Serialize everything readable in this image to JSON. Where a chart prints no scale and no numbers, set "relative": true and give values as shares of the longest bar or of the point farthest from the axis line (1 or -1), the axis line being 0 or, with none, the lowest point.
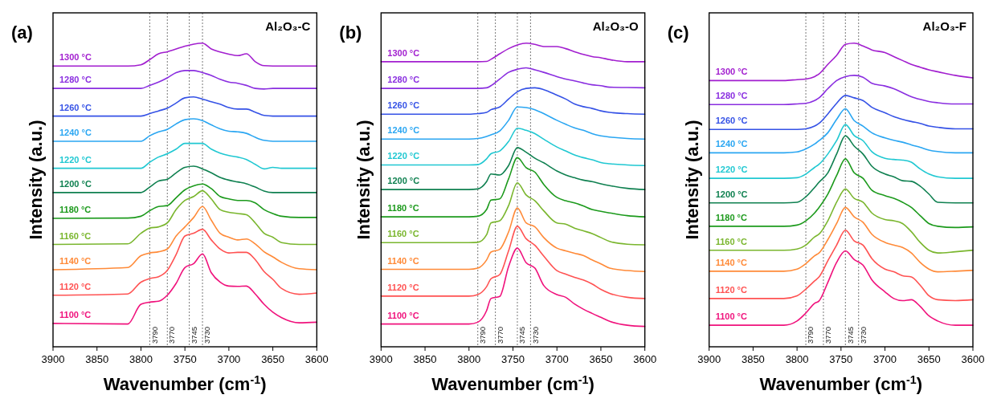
{
  "chart_data": [
    {
      "type": "line",
      "relative": true,
      "title": "(a)",
      "subtitle": "Al₂O₃-C",
      "xlabel": "Wavenumber (cm$^{-1}$)",
      "ylabel": "Intensity (a.u.)",
      "xlim": [
        3900,
        3600
      ],
      "xticks": [
        3900,
        3850,
        3800,
        3750,
        3700,
        3650,
        3600
      ],
      "tick_labels": "x",
      "x": [
        3900,
        3815,
        3800,
        3790,
        3780,
        3770,
        3760,
        3750,
        3740,
        3730,
        3720,
        3710,
        3700,
        3690,
        3680,
        3670,
        3660,
        3650,
        3640,
        3620,
        3600
      ],
      "ref_lines": [
        {
          "axis": "x",
          "value": 3790,
          "label": "3790",
          "color": "#555555",
          "line_style": "dotted"
        },
        {
          "axis": "x",
          "value": 3770,
          "label": "3770",
          "color": "#555555",
          "line_style": "dotted"
        },
        {
          "axis": "x",
          "value": 3745,
          "label": "3745",
          "color": "#555555",
          "line_style": "dotted"
        },
        {
          "axis": "x",
          "value": 3730,
          "label": "3730",
          "color": "#555555",
          "line_style": "dotted"
        }
      ],
      "series": [
        {
          "name": "1300 °C",
          "color": "#a21fcf",
          "values": [
            0.925,
            0.925,
            0.929,
            0.946,
            0.965,
            0.972,
            0.981,
            0.99,
            0.997,
            1.0,
            0.981,
            0.971,
            0.964,
            0.959,
            0.965,
            0.939,
            0.926,
            0.925,
            0.925,
            0.925,
            0.925
          ]
        },
        {
          "name": "1280 °C",
          "color": "#8a2ee0",
          "values": [
            0.851,
            0.851,
            0.851,
            0.861,
            0.872,
            0.886,
            0.903,
            0.91,
            0.91,
            0.903,
            0.894,
            0.881,
            0.872,
            0.868,
            0.861,
            0.851,
            0.849,
            0.851,
            0.851,
            0.851,
            0.851
          ]
        },
        {
          "name": "1260 °C",
          "color": "#3552e6",
          "values": [
            0.76,
            0.76,
            0.76,
            0.768,
            0.777,
            0.786,
            0.803,
            0.82,
            0.823,
            0.816,
            0.807,
            0.799,
            0.788,
            0.783,
            0.783,
            0.773,
            0.762,
            0.76,
            0.76,
            0.76,
            0.76
          ]
        },
        {
          "name": "1240 °C",
          "color": "#2aa6f2",
          "values": [
            0.677,
            0.677,
            0.677,
            0.695,
            0.708,
            0.716,
            0.734,
            0.748,
            0.751,
            0.745,
            0.731,
            0.718,
            0.71,
            0.708,
            0.703,
            0.69,
            0.68,
            0.677,
            0.677,
            0.677,
            0.677
          ]
        },
        {
          "name": "1220 °C",
          "color": "#20c8d2",
          "values": [
            0.588,
            0.588,
            0.588,
            0.608,
            0.625,
            0.636,
            0.651,
            0.67,
            0.67,
            0.67,
            0.651,
            0.638,
            0.63,
            0.625,
            0.617,
            0.601,
            0.586,
            0.591,
            0.588,
            0.588,
            0.588
          ]
        },
        {
          "name": "1200 °C",
          "color": "#0f8050",
          "values": [
            0.508,
            0.508,
            0.508,
            0.526,
            0.546,
            0.552,
            0.573,
            0.591,
            0.595,
            0.586,
            0.573,
            0.558,
            0.549,
            0.543,
            0.537,
            0.526,
            0.513,
            0.508,
            0.508,
            0.508,
            0.508
          ]
        },
        {
          "name": "1180 °C",
          "color": "#1c9a1c",
          "values": [
            0.423,
            0.424,
            0.43,
            0.448,
            0.462,
            0.465,
            0.491,
            0.517,
            0.53,
            0.536,
            0.521,
            0.495,
            0.487,
            0.482,
            0.482,
            0.474,
            0.452,
            0.439,
            0.43,
            0.426,
            0.426
          ]
        },
        {
          "name": "1160 °C",
          "color": "#7ab62e",
          "values": [
            0.337,
            0.339,
            0.374,
            0.391,
            0.395,
            0.408,
            0.452,
            0.482,
            0.495,
            0.514,
            0.487,
            0.452,
            0.443,
            0.439,
            0.435,
            0.408,
            0.374,
            0.361,
            0.343,
            0.337,
            0.337
          ]
        },
        {
          "name": "1140 °C",
          "color": "#ff8a38",
          "values": [
            0.254,
            0.261,
            0.3,
            0.309,
            0.313,
            0.322,
            0.365,
            0.395,
            0.426,
            0.462,
            0.417,
            0.374,
            0.361,
            0.352,
            0.355,
            0.339,
            0.313,
            0.296,
            0.278,
            0.257,
            0.254
          ]
        },
        {
          "name": "1120 °C",
          "color": "#ff5252",
          "values": [
            0.17,
            0.174,
            0.213,
            0.225,
            0.231,
            0.252,
            0.304,
            0.365,
            0.374,
            0.387,
            0.352,
            0.322,
            0.309,
            0.311,
            0.311,
            0.287,
            0.248,
            0.222,
            0.192,
            0.173,
            0.177
          ]
        },
        {
          "name": "1100 °C",
          "color": "#f0127c",
          "values": [
            0.077,
            0.075,
            0.14,
            0.147,
            0.15,
            0.17,
            0.209,
            0.261,
            0.274,
            0.306,
            0.244,
            0.213,
            0.2,
            0.199,
            0.2,
            0.174,
            0.14,
            0.114,
            0.096,
            0.079,
            0.081
          ]
        }
      ]
    },
    {
      "type": "line",
      "relative": true,
      "title": "(b)",
      "subtitle": "Al₂O₃-O",
      "xlabel": "Wavenumber (cm$^{-1}$)",
      "ylabel": "Intensity (a.u.)",
      "xlim": [
        3900,
        3600
      ],
      "xticks": [
        3900,
        3850,
        3800,
        3750,
        3700,
        3650,
        3600
      ],
      "tick_labels": "x",
      "x": [
        3900,
        3815,
        3800,
        3790,
        3780,
        3775,
        3765,
        3755,
        3745,
        3735,
        3725,
        3715,
        3700,
        3690,
        3680,
        3670,
        3660,
        3650,
        3640,
        3620,
        3600
      ],
      "ref_lines": [
        {
          "axis": "x",
          "value": 3790,
          "label": "3790",
          "color": "#555555",
          "line_style": "dotted"
        },
        {
          "axis": "x",
          "value": 3770,
          "label": "3770",
          "color": "#555555",
          "line_style": "dotted"
        },
        {
          "axis": "x",
          "value": 3745,
          "label": "3745",
          "color": "#555555",
          "line_style": "dotted"
        },
        {
          "axis": "x",
          "value": 3730,
          "label": "3730",
          "color": "#555555",
          "line_style": "dotted"
        }
      ],
      "series": [
        {
          "name": "1300 °C",
          "color": "#a21fcf",
          "values": [
            0.939,
            0.939,
            0.939,
            0.939,
            0.94,
            0.947,
            0.965,
            0.982,
            0.994,
            1.0,
            0.996,
            0.989,
            0.989,
            0.982,
            0.972,
            0.963,
            0.956,
            0.952,
            0.946,
            0.939,
            0.939
          ]
        },
        {
          "name": "1280 °C",
          "color": "#8a2ee0",
          "values": [
            0.851,
            0.851,
            0.851,
            0.851,
            0.853,
            0.86,
            0.882,
            0.904,
            0.914,
            0.919,
            0.912,
            0.904,
            0.89,
            0.882,
            0.876,
            0.869,
            0.863,
            0.86,
            0.855,
            0.854,
            0.853
          ]
        },
        {
          "name": "1260 °C",
          "color": "#3552e6",
          "values": [
            0.766,
            0.766,
            0.766,
            0.768,
            0.772,
            0.781,
            0.79,
            0.816,
            0.84,
            0.851,
            0.853,
            0.847,
            0.829,
            0.816,
            0.8,
            0.791,
            0.785,
            0.777,
            0.772,
            0.768,
            0.766
          ]
        },
        {
          "name": "1240 °C",
          "color": "#2aa6f2",
          "values": [
            0.684,
            0.684,
            0.684,
            0.686,
            0.693,
            0.698,
            0.711,
            0.746,
            0.79,
            0.788,
            0.781,
            0.768,
            0.746,
            0.733,
            0.721,
            0.713,
            0.702,
            0.695,
            0.691,
            0.686,
            0.684
          ]
        },
        {
          "name": "1220 °C",
          "color": "#20c8d2",
          "values": [
            0.599,
            0.599,
            0.599,
            0.6,
            0.619,
            0.636,
            0.645,
            0.676,
            0.72,
            0.713,
            0.702,
            0.684,
            0.658,
            0.645,
            0.632,
            0.623,
            0.616,
            0.607,
            0.603,
            0.599,
            0.597
          ]
        },
        {
          "name": "1200 °C",
          "color": "#0f8050",
          "values": [
            0.518,
            0.518,
            0.518,
            0.52,
            0.544,
            0.569,
            0.566,
            0.597,
            0.656,
            0.641,
            0.621,
            0.606,
            0.579,
            0.566,
            0.557,
            0.549,
            0.544,
            0.537,
            0.531,
            0.522,
            0.518
          ]
        },
        {
          "name": "1180 °C",
          "color": "#1c9a1c",
          "values": [
            0.428,
            0.428,
            0.428,
            0.43,
            0.452,
            0.483,
            0.487,
            0.553,
            0.623,
            0.59,
            0.575,
            0.535,
            0.492,
            0.481,
            0.474,
            0.464,
            0.452,
            0.446,
            0.441,
            0.432,
            0.428
          ]
        },
        {
          "name": "1160 °C",
          "color": "#7ab62e",
          "values": [
            0.343,
            0.343,
            0.343,
            0.344,
            0.369,
            0.408,
            0.415,
            0.465,
            0.54,
            0.5,
            0.481,
            0.448,
            0.408,
            0.404,
            0.391,
            0.382,
            0.373,
            0.36,
            0.347,
            0.338,
            0.336
          ]
        },
        {
          "name": "1140 °C",
          "color": "#ff8a38",
          "values": [
            0.255,
            0.255,
            0.255,
            0.259,
            0.286,
            0.312,
            0.321,
            0.378,
            0.457,
            0.408,
            0.395,
            0.36,
            0.325,
            0.316,
            0.308,
            0.301,
            0.286,
            0.273,
            0.259,
            0.251,
            0.248
          ]
        },
        {
          "name": "1120 °C",
          "color": "#ff5252",
          "values": [
            0.167,
            0.167,
            0.167,
            0.172,
            0.198,
            0.224,
            0.238,
            0.316,
            0.397,
            0.356,
            0.334,
            0.299,
            0.251,
            0.239,
            0.229,
            0.22,
            0.207,
            0.189,
            0.176,
            0.163,
            0.159
          ]
        },
        {
          "name": "1100 °C",
          "color": "#f0127c",
          "values": [
            0.075,
            0.075,
            0.075,
            0.081,
            0.119,
            0.159,
            0.166,
            0.264,
            0.325,
            0.277,
            0.259,
            0.202,
            0.172,
            0.163,
            0.141,
            0.124,
            0.11,
            0.097,
            0.084,
            0.071,
            0.067
          ]
        }
      ]
    },
    {
      "type": "line",
      "relative": true,
      "title": "(c)",
      "subtitle": "Al₂O₃-F",
      "xlabel": "Wavenumber (cm$^{-1}$)",
      "ylabel": "Intensity (a.u.)",
      "xlim": [
        3900,
        3600
      ],
      "xticks": [
        3900,
        3850,
        3800,
        3750,
        3700,
        3650,
        3600
      ],
      "tick_labels": "x",
      "x": [
        3900,
        3815,
        3800,
        3790,
        3780,
        3775,
        3765,
        3755,
        3745,
        3735,
        3725,
        3715,
        3700,
        3690,
        3680,
        3670,
        3660,
        3650,
        3640,
        3620,
        3600
      ],
      "ref_lines": [
        {
          "axis": "x",
          "value": 3790,
          "label": "3790",
          "color": "#555555",
          "line_style": "dotted"
        },
        {
          "axis": "x",
          "value": 3770,
          "label": "3770",
          "color": "#555555",
          "line_style": "dotted"
        },
        {
          "axis": "x",
          "value": 3745,
          "label": "3745",
          "color": "#555555",
          "line_style": "dotted"
        },
        {
          "axis": "x",
          "value": 3730,
          "label": "3730",
          "color": "#555555",
          "line_style": "dotted"
        }
      ],
      "series": [
        {
          "name": "1300 °C",
          "color": "#a21fcf",
          "values": [
            0.877,
            0.877,
            0.88,
            0.882,
            0.89,
            0.899,
            0.93,
            0.96,
            0.996,
            1.0,
            0.991,
            0.978,
            0.969,
            0.956,
            0.943,
            0.93,
            0.921,
            0.912,
            0.906,
            0.894,
            0.886
          ]
        },
        {
          "name": "1280 °C",
          "color": "#8a2ee0",
          "values": [
            0.798,
            0.798,
            0.8,
            0.802,
            0.811,
            0.82,
            0.85,
            0.877,
            0.89,
            0.894,
            0.888,
            0.868,
            0.859,
            0.85,
            0.837,
            0.824,
            0.815,
            0.808,
            0.804,
            0.8,
            0.8
          ]
        },
        {
          "name": "1260 °C",
          "color": "#3552e6",
          "values": [
            0.716,
            0.716,
            0.716,
            0.718,
            0.727,
            0.736,
            0.767,
            0.802,
            0.828,
            0.82,
            0.811,
            0.789,
            0.771,
            0.758,
            0.749,
            0.742,
            0.736,
            0.727,
            0.723,
            0.718,
            0.718
          ]
        },
        {
          "name": "1240 °C",
          "color": "#2aa6f2",
          "values": [
            0.639,
            0.639,
            0.642,
            0.652,
            0.668,
            0.679,
            0.705,
            0.749,
            0.784,
            0.745,
            0.727,
            0.705,
            0.688,
            0.68,
            0.674,
            0.665,
            0.657,
            0.648,
            0.643,
            0.639,
            0.639
          ]
        },
        {
          "name": "1220 °C",
          "color": "#20c8d2",
          "values": [
            0.555,
            0.555,
            0.557,
            0.569,
            0.591,
            0.601,
            0.635,
            0.679,
            0.732,
            0.696,
            0.679,
            0.643,
            0.621,
            0.617,
            0.615,
            0.608,
            0.586,
            0.569,
            0.56,
            0.555,
            0.555
          ]
        },
        {
          "name": "1200 °C",
          "color": "#0f8050",
          "values": [
            0.474,
            0.474,
            0.476,
            0.494,
            0.525,
            0.542,
            0.573,
            0.635,
            0.695,
            0.661,
            0.635,
            0.595,
            0.569,
            0.56,
            0.547,
            0.545,
            0.529,
            0.503,
            0.476,
            0.474,
            0.474
          ]
        },
        {
          "name": "1180 °C",
          "color": "#1c9a1c",
          "values": [
            0.397,
            0.397,
            0.401,
            0.415,
            0.441,
            0.459,
            0.503,
            0.564,
            0.619,
            0.573,
            0.555,
            0.516,
            0.498,
            0.489,
            0.476,
            0.459,
            0.432,
            0.406,
            0.397,
            0.393,
            0.395
          ]
        },
        {
          "name": "1160 °C",
          "color": "#7ab62e",
          "values": [
            0.318,
            0.318,
            0.322,
            0.335,
            0.362,
            0.371,
            0.415,
            0.476,
            0.52,
            0.489,
            0.476,
            0.441,
            0.419,
            0.415,
            0.406,
            0.379,
            0.344,
            0.318,
            0.309,
            0.313,
            0.318
          ]
        },
        {
          "name": "1140 °C",
          "color": "#ff8a38",
          "values": [
            0.249,
            0.249,
            0.256,
            0.274,
            0.3,
            0.309,
            0.353,
            0.406,
            0.459,
            0.428,
            0.41,
            0.371,
            0.344,
            0.335,
            0.327,
            0.309,
            0.278,
            0.256,
            0.247,
            0.249,
            0.252
          ]
        },
        {
          "name": "1120 °C",
          "color": "#ff5252",
          "values": [
            0.159,
            0.159,
            0.168,
            0.19,
            0.217,
            0.23,
            0.283,
            0.335,
            0.384,
            0.349,
            0.335,
            0.291,
            0.256,
            0.247,
            0.234,
            0.23,
            0.203,
            0.168,
            0.155,
            0.152,
            0.155
          ]
        },
        {
          "name": "1100 °C",
          "color": "#f0127c",
          "values": [
            0.071,
            0.071,
            0.085,
            0.111,
            0.143,
            0.151,
            0.212,
            0.278,
            0.316,
            0.287,
            0.269,
            0.221,
            0.181,
            0.159,
            0.152,
            0.155,
            0.133,
            0.102,
            0.085,
            0.071,
            0.071
          ]
        }
      ]
    }
  ]
}
